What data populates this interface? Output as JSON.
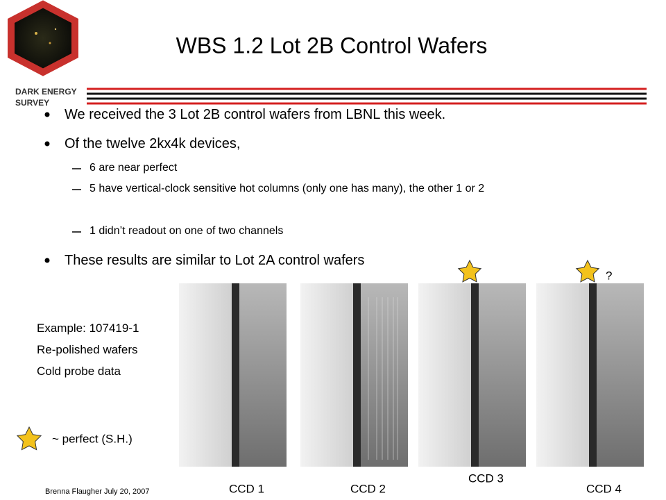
{
  "header": {
    "title": "WBS 1.2 Lot 2B Control Wafers"
  },
  "logo": {
    "lines": [
      "DARK ENERGY",
      "SURVEY"
    ]
  },
  "bullets": [
    {
      "level": 1,
      "text": "We received the 3 Lot 2B control wafers from LBNL this week."
    },
    {
      "level": 1,
      "text": "Of the twelve 2kx4k devices,"
    },
    {
      "level": 2,
      "text": "6 are near perfect"
    },
    {
      "level": 2,
      "text": "5 have vertical-clock sensitive hot columns (only one has many), the other 1 or 2"
    },
    {
      "level": 2,
      "text": "1 didn’t readout on one of two channels"
    },
    {
      "level": 1,
      "text": "These results are similar to Lot 2A control wafers"
    }
  ],
  "example": {
    "lines": [
      "Example: 107419-1",
      "Re-polished wafers",
      "Cold probe data"
    ]
  },
  "legend": {
    "label": "~ perfect (S.H.)"
  },
  "images": [
    {
      "label": "CCD 1",
      "starred": false
    },
    {
      "label": "CCD 2",
      "starred": false
    },
    {
      "label": "CCD 3",
      "starred": true
    },
    {
      "label": "CCD 4",
      "starred": true,
      "note": "?"
    }
  ],
  "footer": {
    "text": "Brenna Flaugher July 20, 2007"
  }
}
